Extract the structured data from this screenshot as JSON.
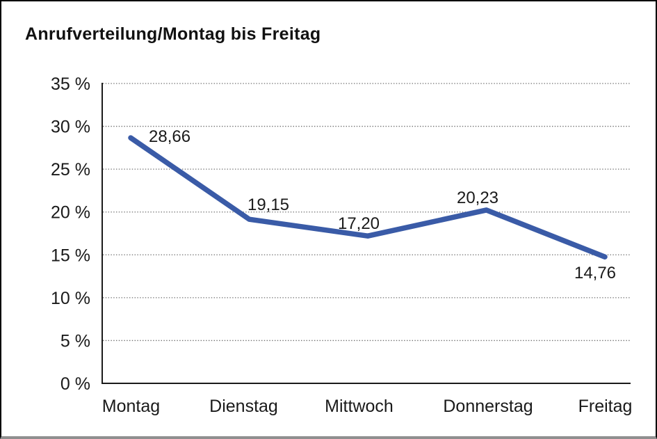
{
  "title": "Anrufverteilung/Montag bis Freitag",
  "chart_data": {
    "type": "line",
    "title": "Anrufverteilung/Montag bis Freitag",
    "categories": [
      "Montag",
      "Dienstag",
      "Mittwoch",
      "Donnerstag",
      "Freitag"
    ],
    "series": [
      {
        "name": "Anrufverteilung",
        "values": [
          28.66,
          19.15,
          17.2,
          20.23,
          14.76
        ]
      }
    ],
    "data_labels": [
      "28,66",
      "19,15",
      "17,20",
      "20,23",
      "14,76"
    ],
    "y_ticks": [
      0,
      5,
      10,
      15,
      20,
      25,
      30,
      35
    ],
    "y_tick_labels": [
      "0 %",
      "5 %",
      "10 %",
      "15 %",
      "20 %",
      "25 %",
      "30 %",
      "35 %"
    ],
    "ylim": [
      0,
      35
    ],
    "xlabel": "",
    "ylabel": "",
    "grid": "horizontal-dotted",
    "legend_position": "none",
    "line_color": "#3a5ba7",
    "axis_color": "#1a1a1a",
    "grid_color": "#6e6e6e"
  }
}
